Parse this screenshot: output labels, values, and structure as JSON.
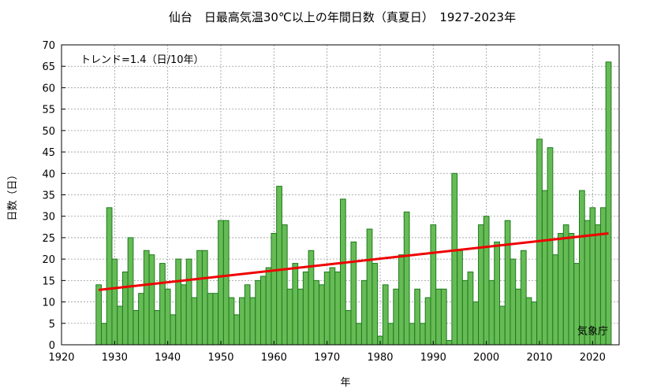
{
  "chart_data": {
    "type": "bar",
    "title": "仙台　日最高気温30℃以上の年間日数（真夏日）　1927-2023年",
    "xlabel": "年",
    "ylabel": "日数（日）",
    "xlim": [
      1920,
      2025
    ],
    "ylim": [
      0,
      70
    ],
    "x_ticks": [
      1920,
      1930,
      1940,
      1950,
      1960,
      1970,
      1980,
      1990,
      2000,
      2010,
      2020
    ],
    "y_ticks": [
      0,
      5,
      10,
      15,
      20,
      25,
      30,
      35,
      40,
      45,
      50,
      55,
      60,
      65,
      70
    ],
    "grid": true,
    "trend_label": "トレンド=1.4（日/10年）",
    "source_label": "気象庁",
    "trend_line": {
      "x": [
        1927,
        2023
      ],
      "y": [
        12.8,
        26.0
      ]
    },
    "x": [
      1927,
      1928,
      1929,
      1930,
      1931,
      1932,
      1933,
      1934,
      1935,
      1936,
      1937,
      1938,
      1939,
      1940,
      1941,
      1942,
      1943,
      1944,
      1945,
      1946,
      1947,
      1948,
      1949,
      1950,
      1951,
      1952,
      1953,
      1954,
      1955,
      1956,
      1957,
      1958,
      1959,
      1960,
      1961,
      1962,
      1963,
      1964,
      1965,
      1966,
      1967,
      1968,
      1969,
      1970,
      1971,
      1972,
      1973,
      1974,
      1975,
      1976,
      1977,
      1978,
      1979,
      1980,
      1981,
      1982,
      1983,
      1984,
      1985,
      1986,
      1987,
      1988,
      1989,
      1990,
      1991,
      1992,
      1993,
      1994,
      1995,
      1996,
      1997,
      1998,
      1999,
      2000,
      2001,
      2002,
      2003,
      2004,
      2005,
      2006,
      2007,
      2008,
      2009,
      2010,
      2011,
      2012,
      2013,
      2014,
      2015,
      2016,
      2017,
      2018,
      2019,
      2020,
      2021,
      2022,
      2023
    ],
    "values": [
      14,
      5,
      32,
      20,
      9,
      17,
      25,
      8,
      12,
      22,
      21,
      8,
      19,
      13,
      7,
      20,
      14,
      20,
      11,
      22,
      22,
      12,
      12,
      29,
      29,
      11,
      7,
      11,
      14,
      11,
      15,
      16,
      18,
      26,
      37,
      28,
      13,
      19,
      13,
      17,
      22,
      15,
      14,
      17,
      18,
      17,
      34,
      8,
      24,
      5,
      15,
      27,
      19,
      2,
      14,
      5,
      13,
      21,
      31,
      5,
      13,
      5,
      11,
      28,
      13,
      13,
      1,
      40,
      22,
      15,
      17,
      10,
      28,
      30,
      15,
      24,
      9,
      29,
      20,
      13,
      22,
      11,
      10,
      48,
      36,
      46,
      21,
      26,
      28,
      26,
      19,
      36,
      29,
      32,
      28,
      32,
      66
    ],
    "bar_color": "#66bb55",
    "bar_edge_color": "#1f7a1f",
    "trend_color": "#ee0000"
  }
}
